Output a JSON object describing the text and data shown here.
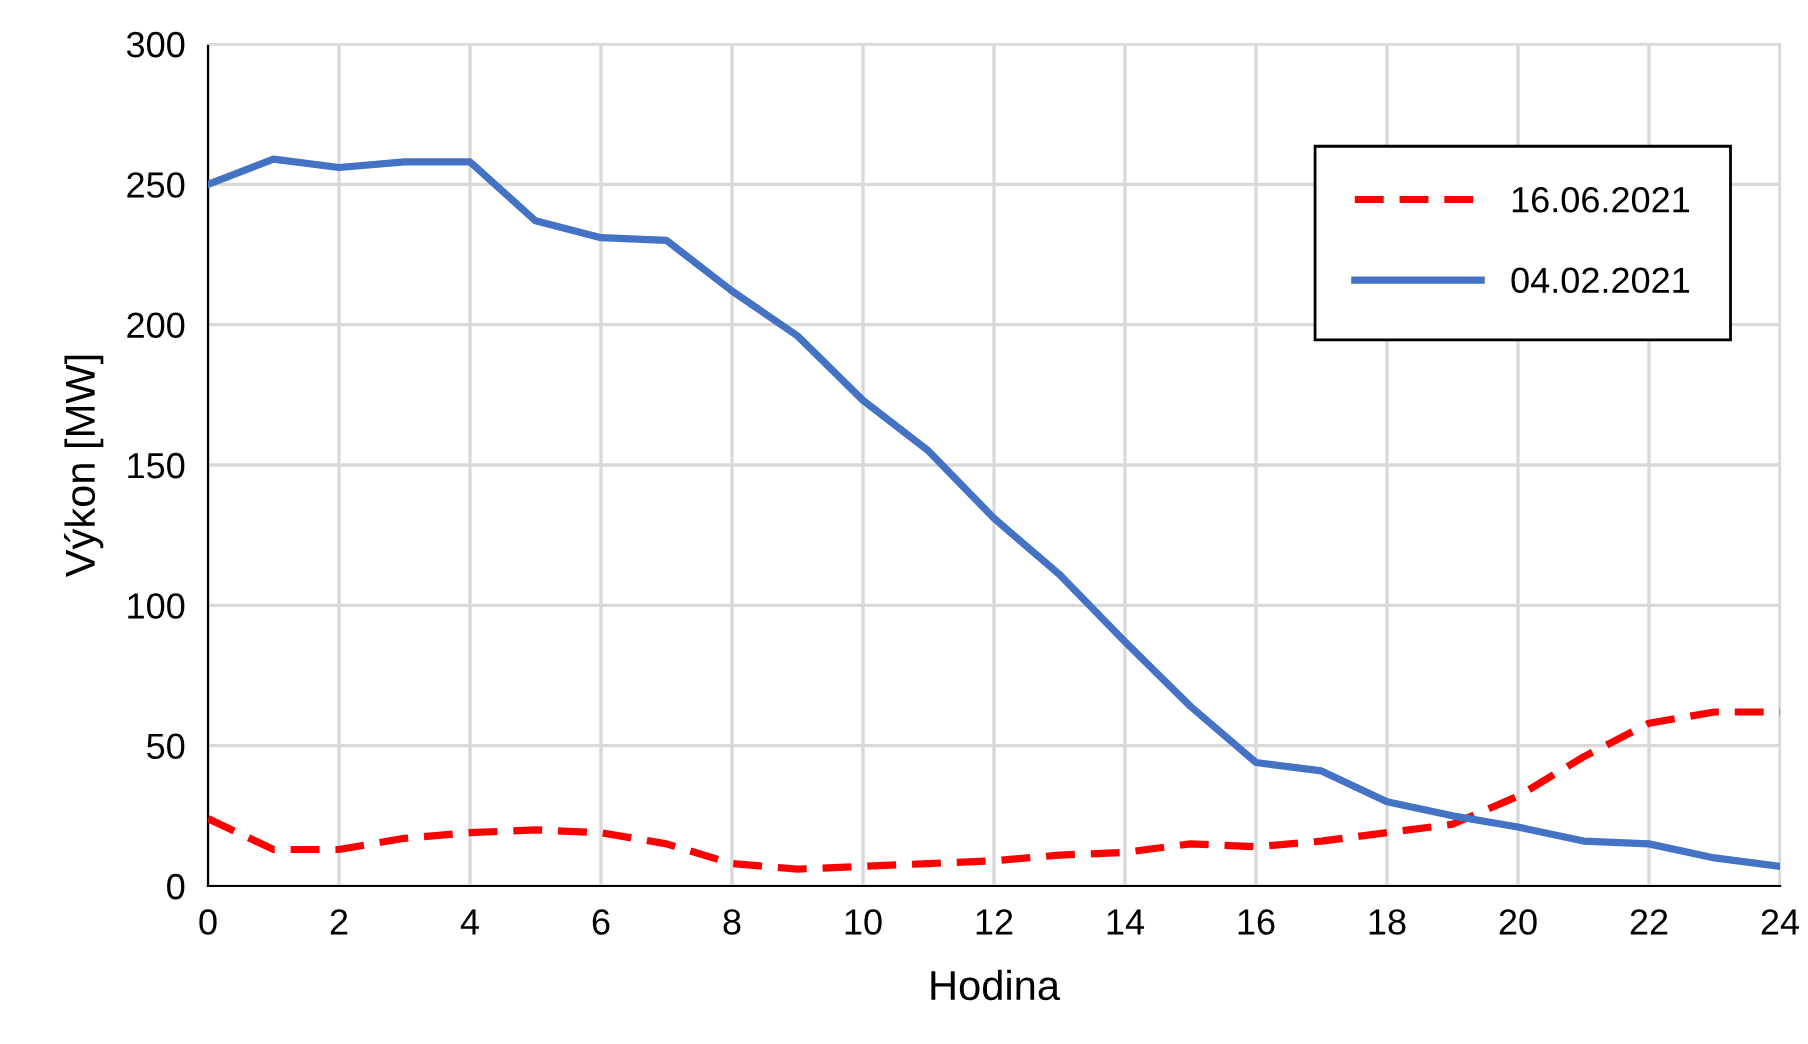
{
  "chart_data": {
    "type": "line",
    "xlabel": "Hodina",
    "ylabel": "Výkon [MW]",
    "x": [
      0,
      1,
      2,
      3,
      4,
      5,
      6,
      7,
      8,
      9,
      10,
      11,
      12,
      13,
      14,
      15,
      16,
      17,
      18,
      19,
      20,
      21,
      22,
      23,
      24
    ],
    "series": [
      {
        "name": "16.06.2021",
        "color": "#ff0000",
        "line_style": "dashed",
        "values": [
          24,
          13,
          13,
          17,
          19,
          20,
          19,
          15,
          8,
          6,
          7,
          8,
          9,
          11,
          12,
          15,
          14,
          16,
          19,
          22,
          32,
          46,
          58,
          62,
          62
        ]
      },
      {
        "name": "04.02.2021",
        "color": "#4472c4",
        "line_style": "solid",
        "values": [
          250,
          259,
          256,
          258,
          258,
          237,
          231,
          230,
          212,
          196,
          173,
          155,
          131,
          111,
          87,
          64,
          44,
          41,
          30,
          25,
          21,
          16,
          15,
          10,
          7
        ]
      }
    ],
    "xlim": [
      0,
      24
    ],
    "xticks": [
      0,
      2,
      4,
      6,
      8,
      10,
      12,
      14,
      16,
      18,
      20,
      22,
      24
    ],
    "ylim": [
      0,
      300
    ],
    "yticks": [
      0,
      50,
      100,
      150,
      200,
      250,
      300
    ],
    "grid": true,
    "legend": "top right",
    "marker": "none"
  }
}
